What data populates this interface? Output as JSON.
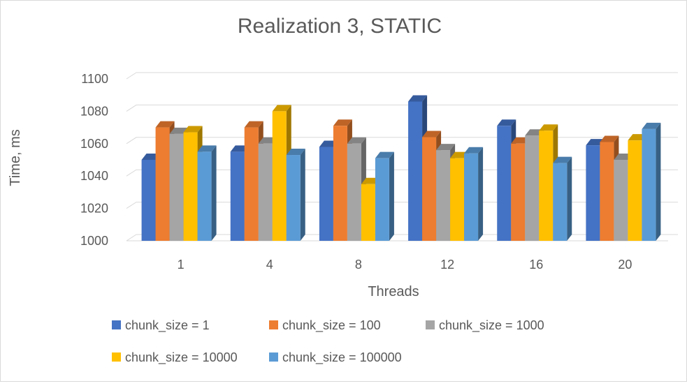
{
  "chart_data": {
    "type": "bar",
    "title": "Realization 3, STATIC",
    "xlabel": "Threads",
    "ylabel": "Time, ms",
    "categories": [
      "1",
      "4",
      "8",
      "12",
      "16",
      "20"
    ],
    "ylim": [
      1000,
      1100
    ],
    "yticks": [
      1000,
      1020,
      1040,
      1060,
      1080,
      1100
    ],
    "grid": true,
    "legend_position": "bottom",
    "style": "3d-clustered-column",
    "series": [
      {
        "name": "chunk_size = 1",
        "color": "#4472c4",
        "values": [
          1050,
          1055,
          1058,
          1086,
          1071,
          1059
        ]
      },
      {
        "name": "chunk_size = 100",
        "color": "#ed7d31",
        "values": [
          1070,
          1070,
          1071,
          1064,
          1060,
          1061
        ]
      },
      {
        "name": "chunk_size = 1000",
        "color": "#a5a5a5",
        "values": [
          1066,
          1060,
          1060,
          1056,
          1065,
          1050
        ]
      },
      {
        "name": "chunk_size = 10000",
        "color": "#ffc000",
        "values": [
          1067,
          1080,
          1035,
          1051,
          1068,
          1062
        ]
      },
      {
        "name": "chunk_size = 100000",
        "color": "#5b9bd5",
        "values": [
          1055,
          1053,
          1051,
          1054,
          1048,
          1069
        ]
      }
    ]
  }
}
